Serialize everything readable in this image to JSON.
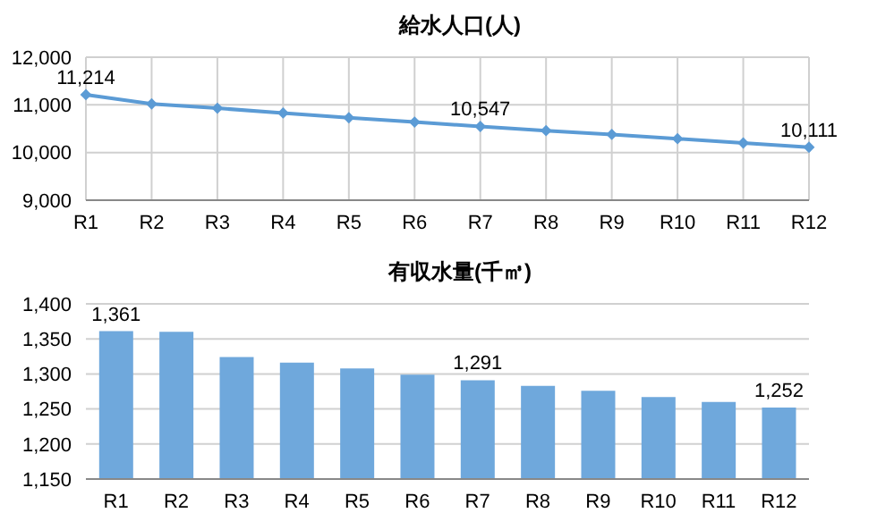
{
  "chart_data": [
    {
      "type": "line",
      "title": "給水人口(人)",
      "categories": [
        "R1",
        "R2",
        "R3",
        "R4",
        "R5",
        "R6",
        "R7",
        "R8",
        "R9",
        "R10",
        "R11",
        "R12"
      ],
      "values": [
        11214,
        11020,
        10930,
        10830,
        10730,
        10640,
        10547,
        10460,
        10380,
        10290,
        10200,
        10111
      ],
      "value_labels": [
        "11,214",
        null,
        null,
        null,
        null,
        null,
        "10,547",
        null,
        null,
        null,
        null,
        "10,111"
      ],
      "color": "#5b9bd5",
      "marker": "diamond",
      "ylim": [
        9000,
        12000
      ],
      "yticks": [
        {
          "value": 9000,
          "label": "9,000"
        },
        {
          "value": 10000,
          "label": "10,000"
        },
        {
          "value": 11000,
          "label": "11,000"
        },
        {
          "value": 12000,
          "label": "12,000"
        }
      ],
      "grid": true
    },
    {
      "type": "bar",
      "title": "有収水量(千㎥)",
      "categories": [
        "R1",
        "R2",
        "R3",
        "R4",
        "R5",
        "R6",
        "R7",
        "R8",
        "R9",
        "R10",
        "R11",
        "R12"
      ],
      "values": [
        1361,
        1360,
        1324,
        1316,
        1308,
        1299,
        1291,
        1283,
        1276,
        1267,
        1260,
        1252
      ],
      "value_labels": [
        "1,361",
        null,
        null,
        null,
        null,
        null,
        "1,291",
        null,
        null,
        null,
        null,
        "1,252"
      ],
      "color": "#6fa8dc",
      "ylim": [
        1150,
        1400
      ],
      "yticks": [
        {
          "value": 1150,
          "label": "1,150"
        },
        {
          "value": 1200,
          "label": "1,200"
        },
        {
          "value": 1250,
          "label": "1,250"
        },
        {
          "value": 1300,
          "label": "1,300"
        },
        {
          "value": 1350,
          "label": "1,350"
        },
        {
          "value": 1400,
          "label": "1,400"
        }
      ],
      "grid": "y"
    }
  ]
}
